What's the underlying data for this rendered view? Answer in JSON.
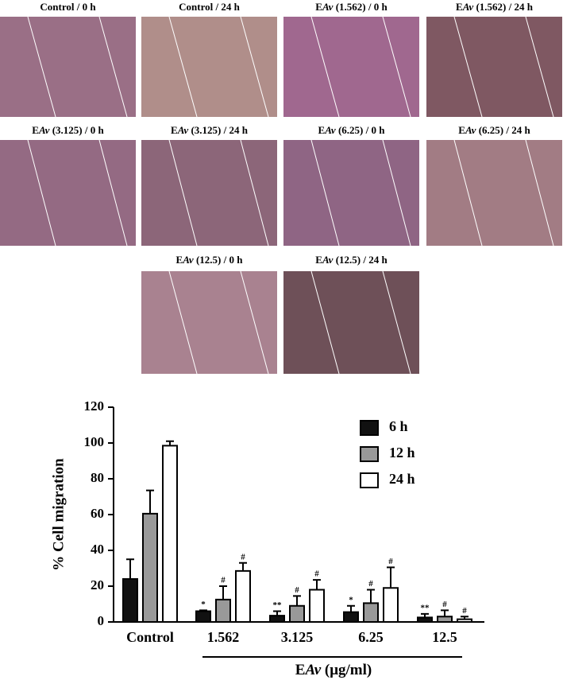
{
  "panels": [
    {
      "label": [
        "Control / 0 h"
      ]
    },
    {
      "label": [
        "Control / 24 h"
      ]
    },
    {
      "label": [
        "E",
        "Av",
        " (1.562) / 0 h"
      ]
    },
    {
      "label": [
        "E",
        "Av",
        " (1.562) / 24 h"
      ]
    },
    {
      "label": [
        "E",
        "Av",
        " (3.125) / 0 h"
      ]
    },
    {
      "label": [
        "E",
        "Av",
        " (3.125) / 24 h"
      ]
    },
    {
      "label": [
        "E",
        "Av",
        " (6.25) / 0 h"
      ]
    },
    {
      "label": [
        "E",
        "Av",
        " (6.25) / 24 h"
      ]
    },
    {
      "label": [
        "E",
        "Av",
        " (12.5) / 0 h"
      ]
    },
    {
      "label": [
        "E",
        "Av",
        " (12.5) / 24 h"
      ]
    }
  ],
  "chart_data": {
    "type": "bar",
    "ylabel": "% Cell migration",
    "xlabel": [
      "E",
      "Av",
      " (μg/ml)"
    ],
    "categories": [
      "Control",
      "1.562",
      "3.125",
      "6.25",
      "12.5"
    ],
    "series": [
      {
        "name": "6 h",
        "color": "#111111",
        "values": [
          24,
          6,
          3.5,
          5.5,
          2.5
        ],
        "errors": [
          11,
          0.5,
          2.5,
          3.5,
          2
        ],
        "marks": [
          null,
          "*",
          "**",
          "*",
          "**"
        ]
      },
      {
        "name": "12 h",
        "color": "#999999",
        "values": [
          60.5,
          12.5,
          9,
          10.5,
          3
        ],
        "errors": [
          13,
          7.5,
          5.5,
          7.5,
          3.5
        ],
        "marks": [
          null,
          "#",
          "#",
          "#",
          "#"
        ]
      },
      {
        "name": "24 h",
        "color": "#ffffff",
        "values": [
          98.5,
          28.5,
          18,
          19,
          1.5
        ],
        "errors": [
          2.5,
          4.5,
          5.5,
          11.5,
          1.5
        ],
        "marks": [
          null,
          "#",
          "#",
          "#",
          "#"
        ]
      }
    ],
    "ylim": [
      0,
      120
    ],
    "yticks": [
      0,
      20,
      40,
      60,
      80,
      100,
      120
    ],
    "legend": "upper right"
  }
}
